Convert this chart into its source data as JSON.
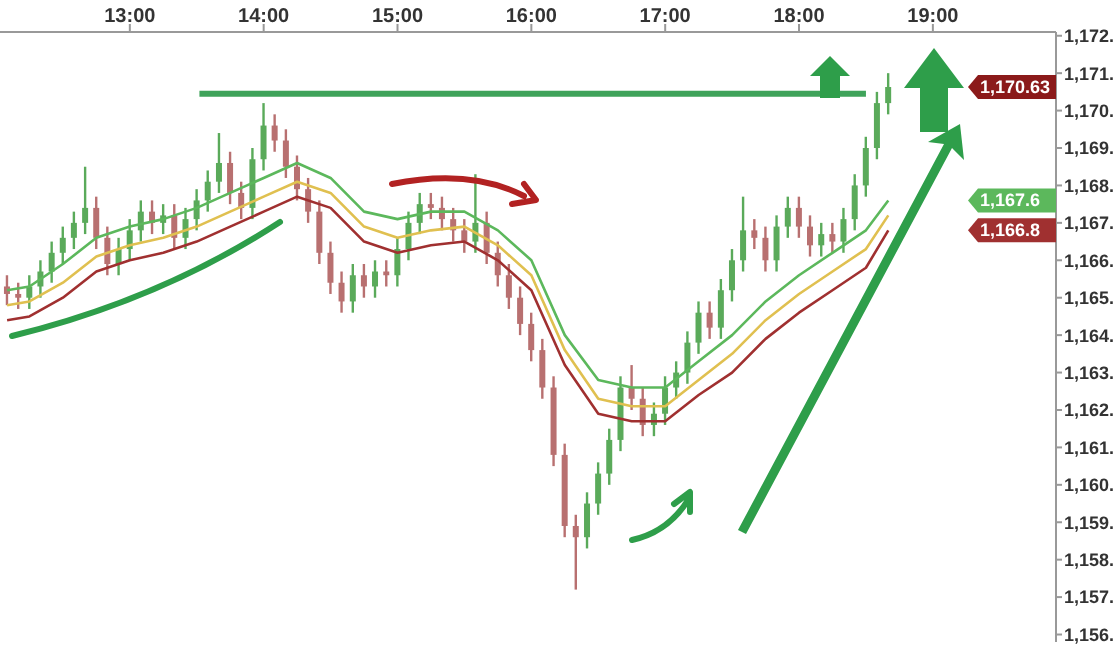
{
  "chart_data": {
    "type": "candlestick",
    "x": [
      12.083,
      12.167,
      12.25,
      12.333,
      12.417,
      12.5,
      12.583,
      12.667,
      12.75,
      12.833,
      12.917,
      13,
      13.083,
      13.167,
      13.25,
      13.333,
      13.417,
      13.5,
      13.583,
      13.667,
      13.75,
      13.833,
      13.917,
      14,
      14.083,
      14.167,
      14.25,
      14.333,
      14.417,
      14.5,
      14.583,
      14.667,
      14.75,
      14.833,
      14.917,
      15,
      15.083,
      15.167,
      15.25,
      15.333,
      15.417,
      15.5,
      15.583,
      15.667,
      15.75,
      15.833,
      15.917,
      16,
      16.083,
      16.167,
      16.25,
      16.333,
      16.417,
      16.5,
      16.583,
      16.667,
      16.75,
      16.833,
      16.917,
      17,
      17.083,
      17.167,
      17.25,
      17.333,
      17.417,
      17.5,
      17.583,
      17.667,
      17.75,
      17.833,
      17.917,
      18,
      18.083,
      18.167,
      18.25,
      18.333,
      18.417,
      18.5,
      18.583,
      18.667
    ],
    "ohlc": [
      [
        1165.3,
        1165.6,
        1164.8,
        1165.1
      ],
      [
        1165.1,
        1165.4,
        1164.7,
        1165.0
      ],
      [
        1165.0,
        1165.6,
        1164.7,
        1165.3
      ],
      [
        1165.3,
        1166.0,
        1165.0,
        1165.7
      ],
      [
        1165.7,
        1166.5,
        1165.4,
        1166.2
      ],
      [
        1166.2,
        1166.9,
        1165.9,
        1166.6
      ],
      [
        1166.6,
        1167.3,
        1166.3,
        1167.0
      ],
      [
        1167.0,
        1168.5,
        1166.7,
        1167.4
      ],
      [
        1167.4,
        1167.7,
        1166.3,
        1166.6
      ],
      [
        1166.6,
        1166.9,
        1165.6,
        1165.9
      ],
      [
        1165.9,
        1166.6,
        1165.6,
        1166.3
      ],
      [
        1166.3,
        1167.1,
        1166.0,
        1166.8
      ],
      [
        1166.8,
        1167.6,
        1166.5,
        1167.3
      ],
      [
        1167.3,
        1167.6,
        1166.7,
        1167.0
      ],
      [
        1167.0,
        1167.5,
        1166.7,
        1167.2
      ],
      [
        1167.2,
        1167.5,
        1166.3,
        1166.6
      ],
      [
        1166.6,
        1167.4,
        1166.3,
        1167.1
      ],
      [
        1167.1,
        1167.9,
        1166.8,
        1167.6
      ],
      [
        1167.6,
        1168.4,
        1167.3,
        1168.1
      ],
      [
        1168.1,
        1169.4,
        1167.8,
        1168.6
      ],
      [
        1168.6,
        1168.9,
        1167.5,
        1167.8
      ],
      [
        1167.8,
        1168.1,
        1167.1,
        1167.4
      ],
      [
        1167.4,
        1169.0,
        1167.1,
        1168.7
      ],
      [
        1168.7,
        1170.2,
        1168.4,
        1169.6
      ],
      [
        1169.6,
        1169.9,
        1168.9,
        1169.2
      ],
      [
        1169.2,
        1169.5,
        1168.2,
        1168.5
      ],
      [
        1168.5,
        1168.8,
        1167.6,
        1167.9
      ],
      [
        1167.9,
        1168.2,
        1167.0,
        1167.3
      ],
      [
        1167.3,
        1167.6,
        1165.9,
        1166.2
      ],
      [
        1166.2,
        1166.5,
        1165.1,
        1165.4
      ],
      [
        1165.4,
        1165.7,
        1164.6,
        1164.9
      ],
      [
        1164.9,
        1165.9,
        1164.6,
        1165.6
      ],
      [
        1165.6,
        1165.9,
        1165.0,
        1165.3
      ],
      [
        1165.3,
        1166.0,
        1165.0,
        1165.7
      ],
      [
        1165.7,
        1166.0,
        1165.3,
        1165.6
      ],
      [
        1165.6,
        1166.6,
        1165.3,
        1166.3
      ],
      [
        1166.3,
        1167.3,
        1166.0,
        1167.0
      ],
      [
        1167.0,
        1167.8,
        1166.7,
        1167.5
      ],
      [
        1167.5,
        1167.8,
        1167.1,
        1167.4
      ],
      [
        1167.4,
        1167.7,
        1166.8,
        1167.1
      ],
      [
        1167.1,
        1167.4,
        1166.5,
        1166.8
      ],
      [
        1166.8,
        1167.1,
        1166.2,
        1166.5
      ],
      [
        1166.5,
        1168.3,
        1166.2,
        1167.0
      ],
      [
        1167.0,
        1167.3,
        1165.9,
        1166.2
      ],
      [
        1166.2,
        1166.5,
        1165.3,
        1165.6
      ],
      [
        1165.6,
        1165.9,
        1164.7,
        1165.0
      ],
      [
        1165.0,
        1165.3,
        1164.0,
        1164.3
      ],
      [
        1164.3,
        1164.6,
        1163.3,
        1163.6
      ],
      [
        1163.6,
        1163.9,
        1162.3,
        1162.6
      ],
      [
        1162.6,
        1162.9,
        1160.5,
        1160.8
      ],
      [
        1160.8,
        1161.1,
        1158.6,
        1158.9
      ],
      [
        1158.9,
        1159.2,
        1157.2,
        1158.6
      ],
      [
        1158.6,
        1159.8,
        1158.3,
        1159.5
      ],
      [
        1159.5,
        1160.6,
        1159.2,
        1160.3
      ],
      [
        1160.3,
        1161.5,
        1160.0,
        1161.2
      ],
      [
        1161.2,
        1162.9,
        1160.9,
        1162.6
      ],
      [
        1162.6,
        1163.2,
        1162.0,
        1162.3
      ],
      [
        1162.3,
        1162.6,
        1161.3,
        1161.6
      ],
      [
        1161.6,
        1162.2,
        1161.3,
        1161.9
      ],
      [
        1161.9,
        1162.9,
        1161.6,
        1162.6
      ],
      [
        1162.6,
        1163.3,
        1162.3,
        1163.0
      ],
      [
        1163.0,
        1164.1,
        1162.7,
        1163.8
      ],
      [
        1163.8,
        1164.9,
        1163.5,
        1164.6
      ],
      [
        1164.6,
        1164.9,
        1163.9,
        1164.2
      ],
      [
        1164.2,
        1165.5,
        1163.9,
        1165.2
      ],
      [
        1165.2,
        1166.3,
        1164.9,
        1166.0
      ],
      [
        1166.0,
        1167.7,
        1165.7,
        1166.8
      ],
      [
        1166.8,
        1167.1,
        1166.3,
        1166.6
      ],
      [
        1166.6,
        1166.9,
        1165.7,
        1166.0
      ],
      [
        1166.0,
        1167.2,
        1165.7,
        1166.9
      ],
      [
        1166.9,
        1167.7,
        1166.6,
        1167.4
      ],
      [
        1167.4,
        1167.7,
        1166.6,
        1166.9
      ],
      [
        1166.9,
        1167.2,
        1166.1,
        1166.4
      ],
      [
        1166.4,
        1167.0,
        1166.1,
        1166.7
      ],
      [
        1166.7,
        1167.0,
        1166.2,
        1166.5
      ],
      [
        1166.5,
        1167.4,
        1166.2,
        1167.1
      ],
      [
        1167.1,
        1168.3,
        1166.8,
        1168.0
      ],
      [
        1168.0,
        1169.3,
        1167.7,
        1169.0
      ],
      [
        1169.0,
        1170.5,
        1168.7,
        1170.2
      ],
      [
        1170.2,
        1171.0,
        1169.9,
        1170.63
      ]
    ],
    "colors": [
      "#b87070",
      "#b87070",
      "#5aaa5a",
      "#5aaa5a",
      "#5aaa5a",
      "#5aaa5a",
      "#5aaa5a",
      "#5aaa5a",
      "#b87070",
      "#b87070",
      "#5aaa5a",
      "#5aaa5a",
      "#5aaa5a",
      "#b87070",
      "#5aaa5a",
      "#b87070",
      "#5aaa5a",
      "#5aaa5a",
      "#5aaa5a",
      "#5aaa5a",
      "#b87070",
      "#b87070",
      "#5aaa5a",
      "#5aaa5a",
      "#b87070",
      "#b87070",
      "#b87070",
      "#b87070",
      "#b87070",
      "#b87070",
      "#b87070",
      "#5aaa5a",
      "#b87070",
      "#5aaa5a",
      "#b87070",
      "#5aaa5a",
      "#5aaa5a",
      "#5aaa5a",
      "#b87070",
      "#b87070",
      "#b87070",
      "#b87070",
      "#5aaa5a",
      "#b87070",
      "#b87070",
      "#b87070",
      "#b87070",
      "#b87070",
      "#b87070",
      "#b87070",
      "#b87070",
      "#b87070",
      "#5aaa5a",
      "#5aaa5a",
      "#5aaa5a",
      "#5aaa5a",
      "#b87070",
      "#b87070",
      "#5aaa5a",
      "#5aaa5a",
      "#5aaa5a",
      "#5aaa5a",
      "#5aaa5a",
      "#b87070",
      "#5aaa5a",
      "#5aaa5a",
      "#5aaa5a",
      "#b87070",
      "#b87070",
      "#5aaa5a",
      "#5aaa5a",
      "#b87070",
      "#b87070",
      "#5aaa5a",
      "#b87070",
      "#5aaa5a",
      "#5aaa5a",
      "#5aaa5a",
      "#5aaa5a",
      "#5aaa5a"
    ],
    "series": [
      {
        "type": "line",
        "color": "#5cb85c",
        "x": [
          12.083,
          12.25,
          12.5,
          12.75,
          13,
          13.25,
          13.5,
          13.75,
          14,
          14.25,
          14.5,
          14.75,
          15,
          15.25,
          15.5,
          15.75,
          16,
          16.25,
          16.5,
          16.75,
          17,
          17.25,
          17.5,
          17.75,
          18,
          18.25,
          18.5,
          18.667
        ],
        "values": [
          1165.2,
          1165.3,
          1165.9,
          1166.6,
          1166.9,
          1167.1,
          1167.4,
          1167.8,
          1168.2,
          1168.6,
          1168.2,
          1167.3,
          1167.1,
          1167.3,
          1167.3,
          1166.8,
          1166.0,
          1164.0,
          1162.8,
          1162.6,
          1162.6,
          1163.3,
          1164.0,
          1164.9,
          1165.6,
          1166.2,
          1166.8,
          1167.6
        ]
      },
      {
        "type": "line",
        "color": "#e0c050",
        "x": [
          12.083,
          12.25,
          12.5,
          12.75,
          13,
          13.25,
          13.5,
          13.75,
          14,
          14.25,
          14.5,
          14.75,
          15,
          15.25,
          15.5,
          15.75,
          16,
          16.25,
          16.5,
          16.75,
          17,
          17.25,
          17.5,
          17.75,
          18,
          18.25,
          18.5,
          18.667
        ],
        "values": [
          1164.8,
          1164.9,
          1165.4,
          1166.1,
          1166.4,
          1166.6,
          1166.9,
          1167.3,
          1167.7,
          1168.1,
          1167.8,
          1166.9,
          1166.6,
          1166.8,
          1166.9,
          1166.4,
          1165.6,
          1163.6,
          1162.3,
          1162.1,
          1162.1,
          1162.8,
          1163.5,
          1164.4,
          1165.1,
          1165.7,
          1166.3,
          1167.2
        ]
      },
      {
        "type": "line",
        "color": "#a03030",
        "x": [
          12.083,
          12.25,
          12.5,
          12.75,
          13,
          13.25,
          13.5,
          13.75,
          14,
          14.25,
          14.5,
          14.75,
          15,
          15.25,
          15.5,
          15.75,
          16,
          16.25,
          16.5,
          16.75,
          17,
          17.25,
          17.5,
          17.75,
          18,
          18.25,
          18.5,
          18.667
        ],
        "values": [
          1164.4,
          1164.5,
          1165.0,
          1165.7,
          1166.0,
          1166.2,
          1166.5,
          1166.9,
          1167.3,
          1167.7,
          1167.4,
          1166.5,
          1166.2,
          1166.4,
          1166.5,
          1166.0,
          1165.2,
          1163.2,
          1161.9,
          1161.7,
          1161.7,
          1162.4,
          1163.0,
          1163.9,
          1164.6,
          1165.2,
          1165.8,
          1166.8
        ]
      },
      {
        "type": "line",
        "color": "#3fa35a",
        "x": [
          13.52,
          18.5
        ],
        "values": [
          1170.45,
          1170.45
        ]
      }
    ],
    "annotations": [
      "1,170.63",
      "1,167.6",
      "1,166.8"
    ],
    "xlim": [
      12.03,
      19.92
    ],
    "xticks": [
      {
        "value": 13,
        "label": "13:00"
      },
      {
        "value": 14,
        "label": "14:00"
      },
      {
        "value": 15,
        "label": "15:00"
      },
      {
        "value": 16,
        "label": "16:00"
      },
      {
        "value": 17,
        "label": "17:00"
      },
      {
        "value": 18,
        "label": "18:00"
      },
      {
        "value": 19,
        "label": "19:00"
      }
    ],
    "ylim": [
      1155.8,
      1172.1
    ],
    "yticks": [
      {
        "value": 1156,
        "label": "1,156."
      },
      {
        "value": 1157,
        "label": "1,157."
      },
      {
        "value": 1158,
        "label": "1,158."
      },
      {
        "value": 1159,
        "label": "1,159."
      },
      {
        "value": 1160,
        "label": "1,160."
      },
      {
        "value": 1161,
        "label": "1,161."
      },
      {
        "value": 1162,
        "label": "1,162."
      },
      {
        "value": 1163,
        "label": "1,163."
      },
      {
        "value": 1164,
        "label": "1,164."
      },
      {
        "value": 1165,
        "label": "1,165."
      },
      {
        "value": 1166,
        "label": "1,166."
      },
      {
        "value": 1167,
        "label": "1,167."
      },
      {
        "value": 1168,
        "label": "1,168."
      },
      {
        "value": 1169,
        "label": "1,169."
      },
      {
        "value": 1170,
        "label": "1,170."
      },
      {
        "value": 1171,
        "label": "1,171."
      },
      {
        "value": 1172,
        "label": "1,172."
      }
    ]
  }
}
